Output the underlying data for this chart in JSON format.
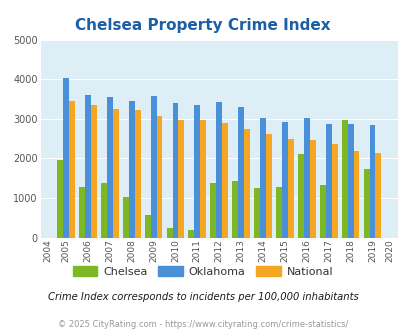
{
  "title": "Chelsea Property Crime Index",
  "years": [
    2004,
    2005,
    2006,
    2007,
    2008,
    2009,
    2010,
    2011,
    2012,
    2013,
    2014,
    2015,
    2016,
    2017,
    2018,
    2019,
    2020
  ],
  "chelsea": [
    null,
    1950,
    1280,
    1380,
    1020,
    580,
    240,
    200,
    1370,
    1440,
    1260,
    1270,
    2120,
    1340,
    2960,
    1720,
    null
  ],
  "oklahoma": [
    null,
    4030,
    3600,
    3540,
    3440,
    3580,
    3400,
    3360,
    3420,
    3310,
    3010,
    2920,
    3010,
    2880,
    2880,
    2840,
    null
  ],
  "national": [
    null,
    3450,
    3340,
    3250,
    3220,
    3060,
    2960,
    2960,
    2890,
    2750,
    2620,
    2490,
    2460,
    2360,
    2190,
    2130,
    null
  ],
  "chelsea_color": "#7db824",
  "oklahoma_color": "#4a90d9",
  "national_color": "#f5a623",
  "bg_color": "#ddeef6",
  "ylim": [
    0,
    5000
  ],
  "yticks": [
    0,
    1000,
    2000,
    3000,
    4000,
    5000
  ],
  "subtitle": "Crime Index corresponds to incidents per 100,000 inhabitants",
  "footer": "© 2025 CityRating.com - https://www.cityrating.com/crime-statistics/",
  "legend_labels": [
    "Chelsea",
    "Oklahoma",
    "National"
  ],
  "title_color": "#1a5fa8",
  "subtitle_color": "#1a1a1a",
  "footer_color": "#999999"
}
